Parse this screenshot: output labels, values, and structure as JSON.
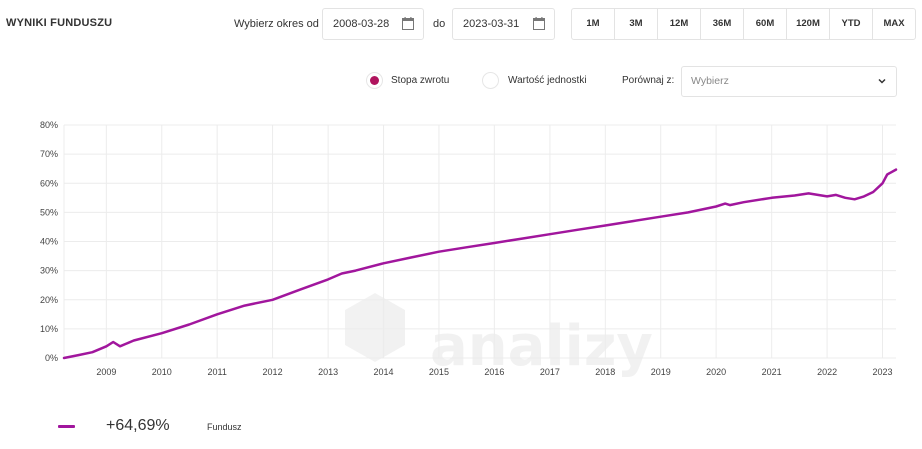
{
  "header": {
    "title": "WYNIKI FUNDUSZU",
    "from_label": "Wybierz okres od",
    "from_date": "2008-03-28",
    "to_label": "do",
    "to_date": "2023-03-31",
    "periods": [
      "1M",
      "3M",
      "12M",
      "36M",
      "60M",
      "120M",
      "YTD",
      "MAX"
    ]
  },
  "controls": {
    "radio_return": "Stopa zwrotu",
    "radio_unit": "Wartość jednostki",
    "compare_label": "Porównaj z:",
    "compare_placeholder": "Wybierz",
    "selected": "Stopa zwrotu"
  },
  "legend": {
    "value": "+64,69%",
    "name": "Fundusz"
  },
  "colors": {
    "series": "#a1169d",
    "accent": "#b0145e",
    "grid": "#ececec"
  },
  "chart_data": {
    "type": "line",
    "xlabel": "",
    "ylabel": "",
    "ylim": [
      0,
      80
    ],
    "yticks": [
      "0%",
      "10%",
      "20%",
      "30%",
      "40%",
      "50%",
      "60%",
      "70%",
      "80%"
    ],
    "xlim": [
      "2008-03-28",
      "2023-03-31"
    ],
    "xticks": [
      "2009",
      "2010",
      "2011",
      "2012",
      "2013",
      "2014",
      "2015",
      "2016",
      "2017",
      "2018",
      "2019",
      "2020",
      "2021",
      "2022",
      "2023"
    ],
    "grid": true,
    "series": [
      {
        "name": "Fundusz",
        "x": [
          "2008-03-28",
          "2008-07-01",
          "2008-10-01",
          "2009-01-01",
          "2009-02-15",
          "2009-04-01",
          "2009-07-01",
          "2010-01-01",
          "2010-07-01",
          "2011-01-01",
          "2011-07-01",
          "2012-01-01",
          "2012-07-01",
          "2013-01-01",
          "2013-04-01",
          "2013-07-01",
          "2014-01-01",
          "2014-07-01",
          "2015-01-01",
          "2015-07-01",
          "2016-01-01",
          "2016-07-01",
          "2017-01-01",
          "2017-07-01",
          "2018-01-01",
          "2018-07-01",
          "2019-01-01",
          "2019-07-01",
          "2020-01-01",
          "2020-03-01",
          "2020-04-01",
          "2020-07-01",
          "2021-01-01",
          "2021-06-01",
          "2021-09-01",
          "2021-11-01",
          "2022-01-01",
          "2022-03-01",
          "2022-05-01",
          "2022-07-01",
          "2022-09-01",
          "2022-11-01",
          "2023-01-01",
          "2023-02-01",
          "2023-03-31"
        ],
        "y": [
          0,
          1,
          2,
          4,
          5.5,
          4,
          6,
          8.5,
          11.5,
          15,
          18,
          20,
          23.5,
          27,
          29,
          30,
          32.5,
          34.5,
          36.5,
          38,
          39.5,
          41,
          42.5,
          44,
          45.5,
          47,
          48.5,
          50,
          52,
          53,
          52.5,
          53.5,
          55,
          55.8,
          56.5,
          56,
          55.5,
          56,
          55,
          54.5,
          55.5,
          57,
          60,
          63,
          64.69
        ]
      }
    ]
  }
}
